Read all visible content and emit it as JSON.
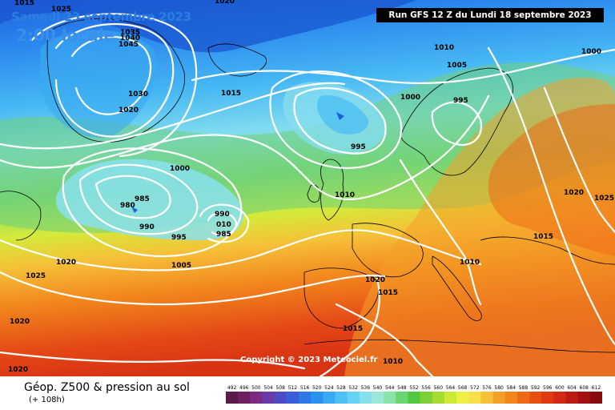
{
  "header": {
    "date": "Samedi 23 septembre 2023",
    "time": "2:00 locale",
    "run": "Run GFS 12 Z du Lundi 18 septembre 2023"
  },
  "copyright": "Copyright © 2023 Meteociel.fr",
  "legend": {
    "title": "Géop. Z500 & pression au sol",
    "subtitle": "(+ 108h)",
    "scale_values": [
      "492",
      "496",
      "500",
      "504",
      "508",
      "512",
      "516",
      "520",
      "524",
      "528",
      "532",
      "536",
      "540",
      "544",
      "548",
      "552",
      "556",
      "560",
      "564",
      "568",
      "572",
      "576",
      "580",
      "584",
      "588",
      "592",
      "596",
      "600",
      "604",
      "608",
      "612"
    ],
    "scale_colors": [
      "#5a1a4a",
      "#6e1f5e",
      "#7e2a82",
      "#6a3aa8",
      "#4e4ac4",
      "#3a5ed8",
      "#2e78e8",
      "#2a92ee",
      "#3aaaf2",
      "#4ec0f4",
      "#66d2f4",
      "#84e0ee",
      "#9ce8d8",
      "#8ae4a8",
      "#6ad670",
      "#52c840",
      "#7ad034",
      "#a6dc30",
      "#ccea3a",
      "#eef046",
      "#f8e048",
      "#f6c038",
      "#f4a028",
      "#f2861c",
      "#ee6a16",
      "#e85012",
      "#e03a12",
      "#d22814",
      "#be1a14",
      "#a41010",
      "#880c0c"
    ]
  },
  "isobar_labels": [
    {
      "text": "1015"
    },
    {
      "text": "1020"
    },
    {
      "text": "1025"
    },
    {
      "text": "1035"
    },
    {
      "text": "1040"
    },
    {
      "text": "1045"
    },
    {
      "text": "1030"
    },
    {
      "text": "1020"
    },
    {
      "text": "1020"
    },
    {
      "text": "1015"
    },
    {
      "text": "1010"
    },
    {
      "text": "1005"
    },
    {
      "text": "1000"
    },
    {
      "text": "1000"
    },
    {
      "text": "995"
    },
    {
      "text": "995"
    },
    {
      "text": "1000"
    },
    {
      "text": "985"
    },
    {
      "text": "980"
    },
    {
      "text": "990"
    },
    {
      "text": "995"
    },
    {
      "text": "990"
    },
    {
      "text": "010"
    },
    {
      "text": "985"
    },
    {
      "text": "1010"
    },
    {
      "text": "1005"
    },
    {
      "text": "1020"
    },
    {
      "text": "1025"
    },
    {
      "text": "1020"
    },
    {
      "text": "1015"
    },
    {
      "text": "1010"
    },
    {
      "text": "1015"
    },
    {
      "text": "1010"
    },
    {
      "text": "1020"
    },
    {
      "text": "1025"
    },
    {
      "text": "1015"
    },
    {
      "text": "1020"
    }
  ]
}
